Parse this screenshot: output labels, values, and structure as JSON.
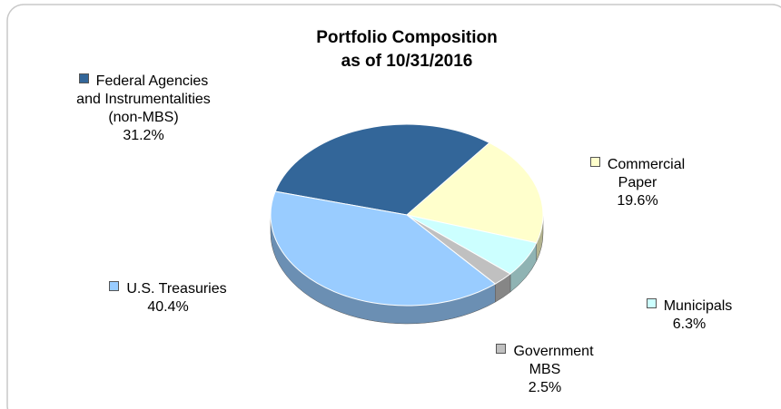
{
  "chart_data": {
    "type": "pie",
    "title": "Portfolio Composition",
    "subtitle": "as of 10/31/2016",
    "categories": [
      "Federal Agencies and Instrumentalities (non-MBS)",
      "Commercial Paper",
      "Municipals",
      "Government MBS",
      "U.S. Treasuries"
    ],
    "values": [
      31.2,
      19.6,
      6.3,
      2.5,
      40.4
    ],
    "value_labels": [
      "31.2%",
      "19.6%",
      "6.3%",
      "2.5%",
      "40.4%"
    ],
    "colors": [
      "#336699",
      "#ffffcc",
      "#ccffff",
      "#c0c0c0",
      "#99ccff"
    ]
  }
}
